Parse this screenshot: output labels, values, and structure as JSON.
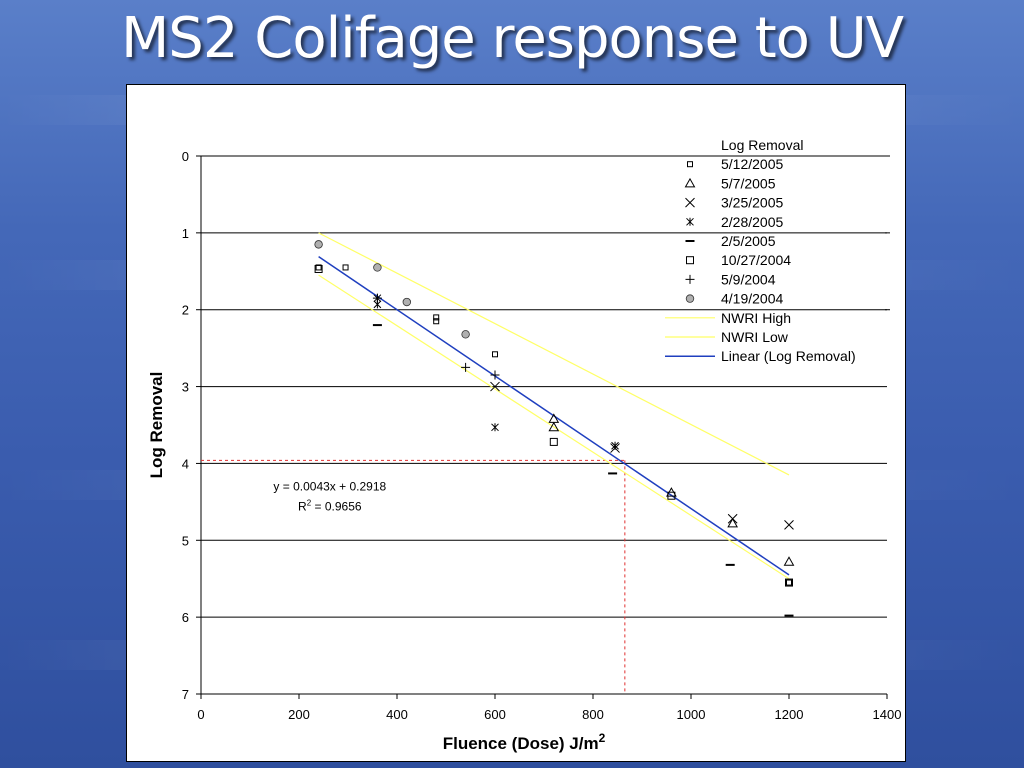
{
  "slide": {
    "title": "MS2 Colifage response to UV"
  },
  "chart_data": {
    "type": "scatter",
    "xlabel": "Fluence (Dose) J/m",
    "xlabel_sup": "2",
    "ylabel": "Log Removal",
    "xlim": [
      0,
      1400
    ],
    "ylim": [
      0,
      7
    ],
    "y_inverted": true,
    "x_ticks": [
      0,
      200,
      400,
      600,
      800,
      1000,
      1200,
      1400
    ],
    "y_ticks": [
      0,
      1,
      2,
      3,
      4,
      5,
      6,
      7
    ],
    "grid": "horizontal",
    "legend_position": "top-right",
    "legend_title": "Log Removal",
    "series": [
      {
        "name": "5/12/2005",
        "marker": "small-square",
        "points": [
          [
            240,
            1.45
          ],
          [
            295,
            1.45
          ],
          [
            480,
            2.1
          ],
          [
            480,
            2.15
          ],
          [
            600,
            2.58
          ],
          [
            1200,
            5.55
          ]
        ]
      },
      {
        "name": "5/7/2005",
        "marker": "triangle",
        "points": [
          [
            720,
            3.42
          ],
          [
            720,
            3.53
          ],
          [
            960,
            4.38
          ],
          [
            1085,
            4.78
          ],
          [
            1200,
            5.28
          ]
        ]
      },
      {
        "name": "3/25/2005",
        "marker": "x",
        "points": [
          [
            600,
            3.0
          ],
          [
            845,
            3.8
          ],
          [
            1085,
            4.72
          ],
          [
            1200,
            4.8
          ]
        ]
      },
      {
        "name": "2/28/2005",
        "marker": "star",
        "points": [
          [
            360,
            1.85
          ],
          [
            360,
            1.93
          ],
          [
            600,
            3.53
          ],
          [
            845,
            3.77
          ]
        ]
      },
      {
        "name": "2/5/2005",
        "marker": "dash",
        "points": [
          [
            360,
            2.2
          ],
          [
            840,
            4.13
          ],
          [
            1080,
            5.32
          ],
          [
            1200,
            5.98
          ]
        ]
      },
      {
        "name": "10/27/2004",
        "marker": "square",
        "points": [
          [
            240,
            1.47
          ],
          [
            720,
            3.72
          ],
          [
            960,
            4.42
          ],
          [
            1200,
            5.55
          ]
        ]
      },
      {
        "name": "5/9/2004",
        "marker": "plus",
        "points": [
          [
            360,
            1.85
          ],
          [
            540,
            2.75
          ],
          [
            600,
            2.85
          ]
        ]
      },
      {
        "name": "4/19/2004",
        "marker": "circle",
        "points": [
          [
            240,
            1.15
          ],
          [
            360,
            1.45
          ],
          [
            420,
            1.9
          ],
          [
            540,
            2.32
          ]
        ]
      }
    ],
    "lines": [
      {
        "name": "NWRI High",
        "color": "#ffff66",
        "points": [
          [
            240,
            1.0
          ],
          [
            1200,
            4.15
          ]
        ]
      },
      {
        "name": "NWRI Low",
        "color": "#ffff66",
        "points": [
          [
            240,
            1.55
          ],
          [
            1200,
            5.5
          ]
        ]
      },
      {
        "name": "Linear (Log Removal)",
        "color": "#1f3fbf",
        "points": [
          [
            240,
            1.31
          ],
          [
            1200,
            5.45
          ]
        ]
      }
    ],
    "reference_lines": {
      "x": 865,
      "y": 3.96,
      "color": "#e03030"
    },
    "annotation": {
      "equation": "y = 0.0043x + 0.2918",
      "r_squared_prefix": "R",
      "r_squared_sup": "2",
      "r_squared_value": " = 0.9656",
      "x": 620,
      "y": 4.35
    }
  }
}
